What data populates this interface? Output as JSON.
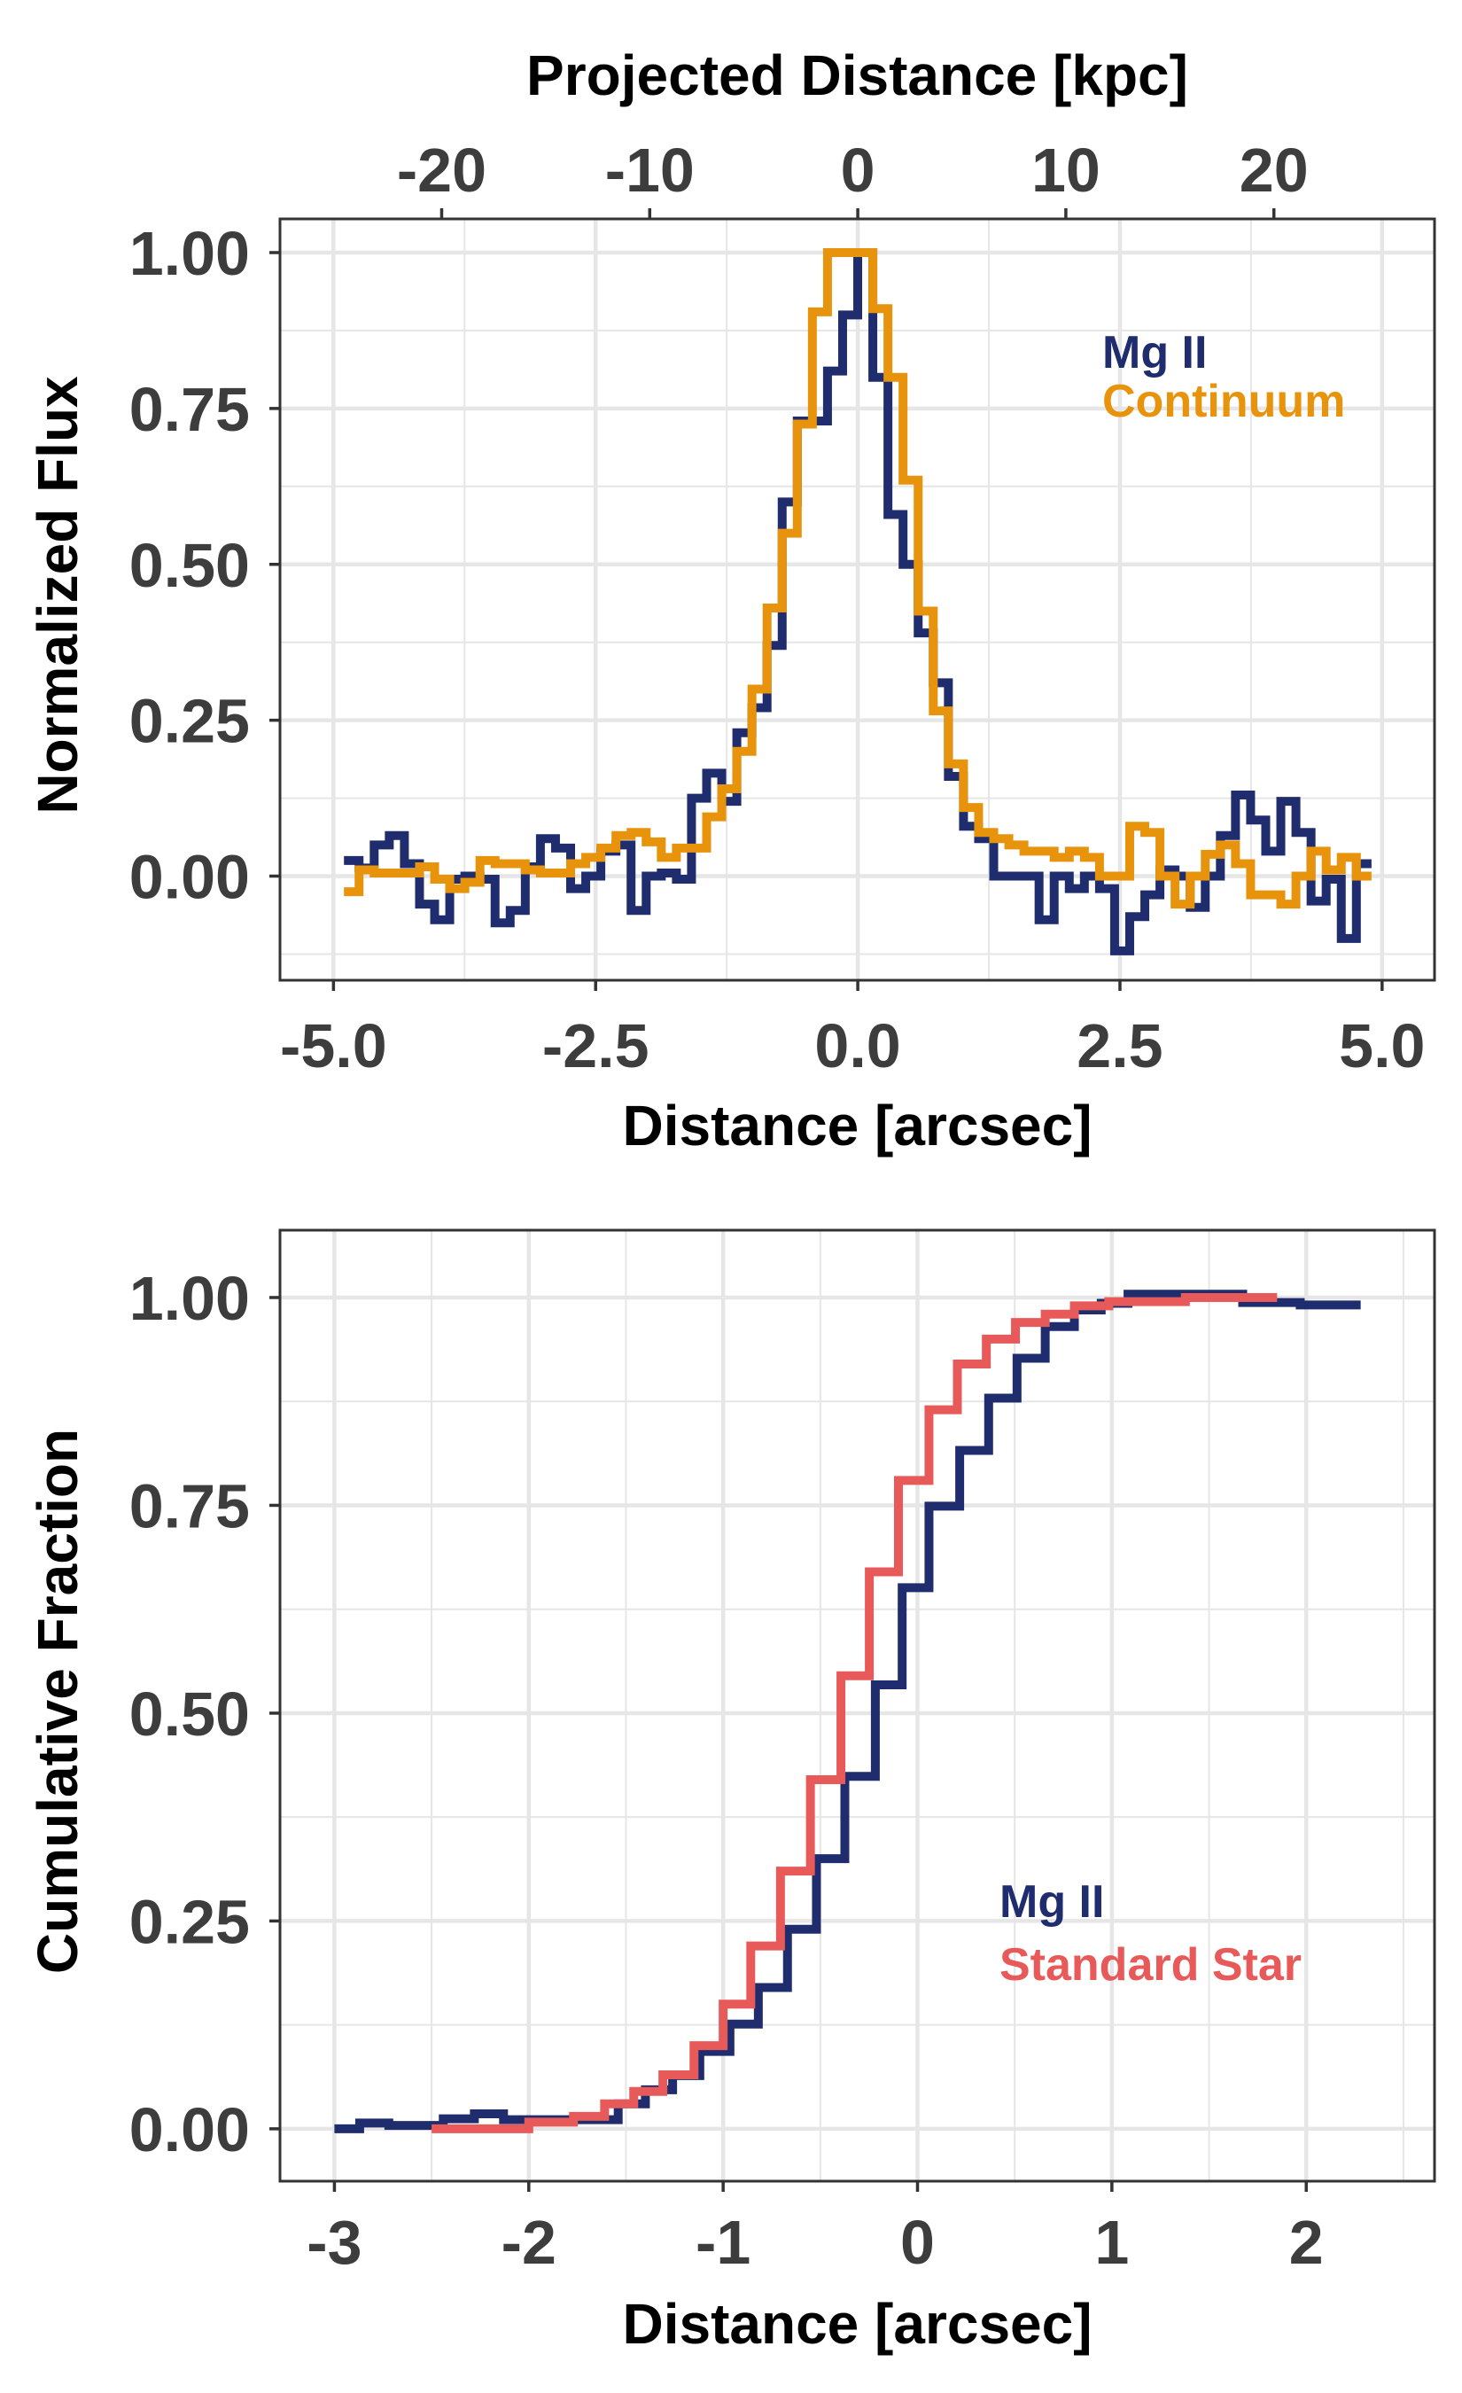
{
  "colors": {
    "mg2": "#1f2d6e",
    "continuum": "#e8930c",
    "standard_star": "#e85a5a",
    "grid": "#e6e6e6",
    "frame": "#333333"
  },
  "chart_data": [
    {
      "type": "line",
      "step": true,
      "xlabel": "Distance [arcsec]",
      "ylabel": "Normalized Flux",
      "top_xlabel": "Projected Distance [kpc]",
      "xlim": [
        -5.51,
        5.5
      ],
      "ylim": [
        -0.167,
        1.054
      ],
      "xticks": [
        -5.0,
        -2.5,
        0.0,
        2.5,
        5.0
      ],
      "xtick_labels": [
        "-5.0",
        "-2.5",
        "0.0",
        "2.5",
        "5.0"
      ],
      "yticks": [
        0,
        0.25,
        0.5,
        0.75,
        1.0
      ],
      "ytick_labels": [
        "0.00",
        "0.25",
        "0.50",
        "0.75",
        "1.00"
      ],
      "top_xticks_kpc": [
        -20,
        -10,
        0,
        10,
        20
      ],
      "top_xtick_labels": [
        "-20",
        "-10",
        "0",
        "10",
        "20"
      ],
      "kpc_per_arcsec": 5.04,
      "bin_start": -4.9,
      "bin_width": 0.1441,
      "legend": [
        "Mg II",
        "Continuum"
      ],
      "legend_placement": "top-right",
      "series": [
        {
          "name": "Mg II",
          "color_key": "mg2",
          "values": [
            0.025,
            0.013,
            0.05,
            0.065,
            0.02,
            -0.045,
            -0.07,
            -0.005,
            0.0,
            -0.005,
            -0.075,
            -0.055,
            0.015,
            0.06,
            0.045,
            -0.02,
            0.0,
            0.04,
            0.05,
            -0.055,
            0.0,
            0.005,
            -0.005,
            0.125,
            0.165,
            0.12,
            0.23,
            0.27,
            0.37,
            0.6,
            0.73,
            0.73,
            0.81,
            0.9,
            1.0,
            0.8,
            0.58,
            0.5,
            0.39,
            0.31,
            0.16,
            0.08,
            0.06,
            0.0,
            0.0,
            0.0,
            -0.07,
            0.0,
            -0.02,
            0.0,
            -0.02,
            -0.12,
            -0.065,
            -0.03,
            0.01,
            0.0,
            -0.05,
            0.0,
            0.065,
            0.13,
            0.09,
            0.04,
            0.12,
            0.07,
            -0.04,
            -0.005,
            -0.1,
            0.02
          ]
        },
        {
          "name": "Continuum",
          "color_key": "continuum",
          "values": [
            -0.025,
            0.01,
            0.005,
            0.005,
            0.005,
            0.015,
            -0.005,
            -0.02,
            -0.01,
            0.025,
            0.02,
            0.02,
            0.01,
            0.005,
            0.005,
            0.02,
            0.03,
            0.045,
            0.065,
            0.07,
            0.055,
            0.03,
            0.045,
            0.045,
            0.095,
            0.14,
            0.2,
            0.3,
            0.43,
            0.55,
            0.725,
            0.905,
            1.0,
            1.0,
            1.0,
            0.91,
            0.8,
            0.635,
            0.425,
            0.265,
            0.18,
            0.11,
            0.07,
            0.06,
            0.05,
            0.04,
            0.04,
            0.03,
            0.04,
            0.03,
            0.0,
            0.0,
            0.08,
            0.07,
            0.0,
            -0.045,
            0.0,
            0.035,
            0.05,
            0.02,
            -0.03,
            -0.03,
            -0.045,
            0.0,
            0.04,
            0.01,
            0.03,
            0.0
          ]
        }
      ]
    },
    {
      "type": "line",
      "step": true,
      "xlabel": "Distance [arcsec]",
      "ylabel": "Cumulative Fraction",
      "xlim": [
        -3.28,
        2.66
      ],
      "ylim": [
        -0.063,
        1.081
      ],
      "xticks": [
        -3,
        -2,
        -1,
        0,
        1,
        2
      ],
      "xtick_labels": [
        "-3",
        "-2",
        "-1",
        "0",
        "1",
        "2"
      ],
      "yticks": [
        0,
        0.25,
        0.5,
        0.75,
        1.0
      ],
      "ytick_labels": [
        "0.00",
        "0.25",
        "0.50",
        "0.75",
        "1.00"
      ],
      "legend": [
        "Mg II",
        "Standard Star"
      ],
      "legend_placement": "bottom-right",
      "series": [
        {
          "name": "Mg II",
          "color_key": "mg2",
          "x": [
            -3.0,
            -2.87,
            -2.72,
            -2.44,
            -2.28,
            -2.13,
            -1.54,
            -1.4,
            -1.26,
            -1.12,
            -0.965,
            -0.819,
            -0.669,
            -0.52,
            -0.374,
            -0.217,
            -0.079,
            0.059,
            0.217,
            0.366,
            0.512,
            0.657,
            0.807,
            0.945,
            1.083,
            1.673,
            1.969
          ],
          "y": [
            0,
            0.007,
            0.004,
            0.012,
            0.018,
            0.011,
            0.03,
            0.047,
            0.064,
            0.093,
            0.126,
            0.17,
            0.24,
            0.325,
            0.424,
            0.534,
            0.651,
            0.749,
            0.816,
            0.879,
            0.927,
            0.965,
            0.985,
            0.993,
            1.004,
            0.994,
            0.991
          ],
          "x_end": 2.28
        },
        {
          "name": "Standard Star",
          "color_key": "standard_star",
          "x": [
            -2.5,
            -2.0,
            -1.77,
            -1.61,
            -1.46,
            -1.31,
            -1.15,
            -1.0,
            -0.858,
            -0.705,
            -0.551,
            -0.394,
            -0.248,
            -0.098,
            0.059,
            0.205,
            0.354,
            0.504,
            0.657,
            0.807,
            0.984,
            1.378
          ],
          "y": [
            0.0,
            0.008,
            0.015,
            0.03,
            0.045,
            0.065,
            0.1,
            0.15,
            0.22,
            0.31,
            0.42,
            0.545,
            0.67,
            0.78,
            0.865,
            0.92,
            0.95,
            0.97,
            0.98,
            0.99,
            0.995,
            1.0
          ],
          "x_end": 1.85
        }
      ]
    }
  ]
}
